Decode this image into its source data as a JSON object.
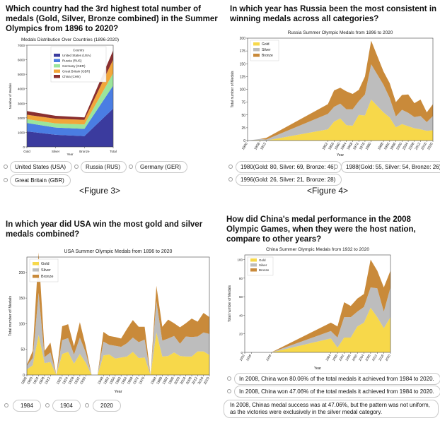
{
  "panels": [
    {
      "question": "Which country had the 3rd highest total number of medals (Gold, Silver, Bronze combined) in the Summer Olympics from 1896 to 2020?",
      "options": [
        "United States (USA)",
        "Russia (RUS)",
        "Germany (GER)",
        "Great Britain (GBR)"
      ],
      "figure_label": "<Figure 3>"
    },
    {
      "question": "In which year has Russia been the most consistent in winning medals across all categories?",
      "options": [
        "1980(Gold: 80, Silver: 69, Bronze: 46)",
        "1988(Gold: 55, Silver: 54, Bronze: 26)",
        "1996(Gold: 26, Silver: 21, Bronze: 28)"
      ],
      "figure_label": "<Figure 4>"
    },
    {
      "question": "In which year did USA win the most gold and silver medals combined?",
      "options": [
        "1984",
        "1904",
        "2020"
      ]
    },
    {
      "question": "How did China's medal performance in the 2008 Olympic Games, when they were the host nation, compare to other years?",
      "options": [
        "In 2008, China won 80.06% of the total medals it achieved from 1984 to 2020.",
        "In 2008, China won 47.06% of the total medals it achieved from 1984 to 2020.",
        "In 2008, Chinas medal success was at 47.06%, but the pattern was not uniform, as the victories were exclusively in the silver medal category."
      ]
    }
  ],
  "colors": {
    "usa": "#3b3b9e",
    "rus": "#4a7de3",
    "ger": "#9be59b",
    "gbr": "#f2a63a",
    "chn": "#8a2f2f",
    "gold": "#f7d84a",
    "silver": "#bdbdbd",
    "bronze": "#c98a3a"
  },
  "chart_data": [
    {
      "type": "area",
      "title": "Medals Distribution Over Countries (1896-2020)",
      "xlabel": "Year",
      "ylabel": "Number of Medals",
      "categories": [
        "Gold",
        "Silver",
        "Bronze",
        "Total"
      ],
      "ylim": [
        0,
        7000
      ],
      "yticks": [
        0,
        1000,
        2000,
        3000,
        4000,
        5000,
        6000,
        7000
      ],
      "legend_title": "Country",
      "legend_position": "upper-center",
      "series": [
        {
          "name": "United States (USA)",
          "values": [
            1070,
            830,
            740,
            2640
          ]
        },
        {
          "name": "Russia (RUS)",
          "values": [
            580,
            500,
            500,
            1580
          ]
        },
        {
          "name": "Germany (GER)",
          "values": [
            260,
            290,
            300,
            850
          ]
        },
        {
          "name": "Great Britain (GBR)",
          "values": [
            300,
            320,
            320,
            940
          ]
        },
        {
          "name": "China (CHN)",
          "values": [
            260,
            200,
            170,
            630
          ]
        }
      ]
    },
    {
      "type": "area",
      "title": "Russia Summer Olympic Medals from 1896 to 2020",
      "xlabel": "Year",
      "ylabel": "Total number of Medals",
      "ylim": [
        0,
        200
      ],
      "yticks": [
        0,
        25,
        50,
        75,
        100,
        125,
        150,
        175,
        200
      ],
      "x_ticks": [
        1900,
        1908,
        1912,
        1952,
        1956,
        1960,
        1964,
        1968,
        1972,
        1976,
        1980,
        1988,
        1992,
        1996,
        2000,
        2004,
        2008,
        2012,
        2016,
        2020
      ],
      "legend_position": "upper-left",
      "x": [
        1900,
        1908,
        1912,
        1952,
        1956,
        1960,
        1964,
        1968,
        1972,
        1976,
        1980,
        1988,
        1992,
        1996,
        2000,
        2004,
        2008,
        2012,
        2016,
        2020
      ],
      "series": [
        {
          "name": "Gold",
          "values": [
            0,
            1,
            0,
            22,
            37,
            43,
            30,
            29,
            50,
            49,
            80,
            55,
            45,
            26,
            32,
            28,
            24,
            22,
            19,
            20
          ]
        },
        {
          "name": "Silver",
          "values": [
            0,
            2,
            2,
            30,
            29,
            29,
            31,
            32,
            27,
            41,
            69,
            54,
            38,
            21,
            28,
            26,
            22,
            26,
            17,
            28
          ]
        },
        {
          "name": "Bronze",
          "values": [
            0,
            0,
            3,
            19,
            32,
            31,
            35,
            30,
            22,
            35,
            46,
            26,
            29,
            28,
            29,
            36,
            27,
            32,
            19,
            23
          ]
        }
      ]
    },
    {
      "type": "area",
      "title": "USA Summer Olympic Medals from 1896 to 2020",
      "xlabel": "Year",
      "ylabel": "Total number of Medals",
      "ylim": [
        0,
        230
      ],
      "yticks": [
        0,
        50,
        100,
        150,
        200
      ],
      "x_ticks": [
        1896,
        1900,
        1904,
        1908,
        1912,
        1920,
        1924,
        1928,
        1932,
        1936,
        1948,
        1952,
        1956,
        1960,
        1964,
        1968,
        1972,
        1976,
        1984,
        1988,
        1992,
        1996,
        2000,
        2004,
        2008,
        2012,
        2016,
        2020
      ],
      "legend_position": "upper-left",
      "x": [
        1896,
        1900,
        1904,
        1908,
        1912,
        1916,
        1920,
        1924,
        1928,
        1932,
        1936,
        1940,
        1944,
        1948,
        1952,
        1956,
        1960,
        1964,
        1968,
        1972,
        1976,
        1980,
        1984,
        1988,
        1992,
        1996,
        2000,
        2004,
        2008,
        2012,
        2016,
        2020
      ],
      "series": [
        {
          "name": "Gold",
          "values": [
            11,
            19,
            78,
            23,
            25,
            0,
            41,
            45,
            22,
            41,
            24,
            0,
            0,
            38,
            40,
            32,
            34,
            36,
            45,
            33,
            34,
            0,
            83,
            36,
            37,
            44,
            37,
            36,
            36,
            46,
            46,
            39
          ]
        },
        {
          "name": "Silver",
          "values": [
            7,
            14,
            82,
            12,
            19,
            0,
            27,
            27,
            18,
            32,
            20,
            0,
            0,
            27,
            19,
            25,
            21,
            26,
            28,
            31,
            35,
            0,
            61,
            31,
            34,
            32,
            24,
            39,
            38,
            29,
            37,
            41
          ]
        },
        {
          "name": "Bronze",
          "values": [
            2,
            14,
            79,
            12,
            19,
            0,
            27,
            27,
            16,
            30,
            12,
            0,
            0,
            19,
            17,
            17,
            16,
            28,
            34,
            30,
            25,
            0,
            30,
            27,
            37,
            25,
            32,
            26,
            36,
            29,
            38,
            33
          ]
        }
      ]
    },
    {
      "type": "area",
      "title": "China Summer Olympic Medals from 1932 to 2020",
      "xlabel": "Year",
      "ylabel": "Total number of Medals",
      "ylim": [
        0,
        105
      ],
      "yticks": [
        0,
        20,
        40,
        60,
        80,
        100
      ],
      "x_ticks": [
        1932,
        1936,
        1948,
        1984,
        1988,
        1992,
        1996,
        2000,
        2004,
        2008,
        2012,
        2016,
        2020
      ],
      "legend_position": "upper-left",
      "x": [
        1932,
        1936,
        1948,
        1984,
        1988,
        1992,
        1996,
        2000,
        2004,
        2008,
        2012,
        2016,
        2020
      ],
      "series": [
        {
          "name": "Gold",
          "values": [
            0,
            0,
            0,
            15,
            5,
            16,
            16,
            28,
            32,
            48,
            38,
            26,
            38
          ]
        },
        {
          "name": "Silver",
          "values": [
            0,
            0,
            0,
            8,
            11,
            22,
            22,
            16,
            17,
            22,
            31,
            18,
            32
          ]
        },
        {
          "name": "Bronze",
          "values": [
            0,
            0,
            0,
            9,
            12,
            16,
            12,
            14,
            14,
            30,
            19,
            26,
            18
          ]
        }
      ]
    }
  ]
}
